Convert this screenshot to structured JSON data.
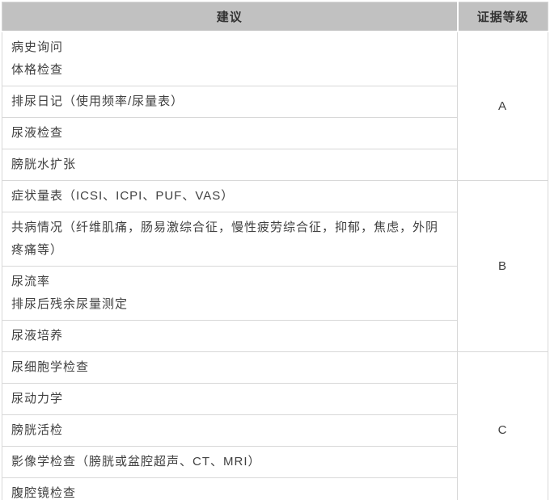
{
  "colors": {
    "header_bg": "#c1c1c1",
    "border": "#d8d8d8",
    "text": "#404040",
    "header_text": "#333333",
    "background": "#ffffff"
  },
  "table": {
    "columns": {
      "recommendation": "建议",
      "evidence": "证据等级"
    },
    "rows": [
      {
        "lines": [
          "病史询问",
          "体格检查"
        ]
      },
      {
        "lines": [
          "排尿日记（使用频率/尿量表）"
        ]
      },
      {
        "lines": [
          "尿液检查"
        ]
      },
      {
        "lines": [
          "膀胱水扩张"
        ]
      },
      {
        "lines": [
          "症状量表（ICSI、ICPI、PUF、VAS）"
        ]
      },
      {
        "lines": [
          "共病情况（纤维肌痛，肠易激综合征，慢性疲劳综合征，抑郁，焦虑，外阴疼痛等）"
        ]
      },
      {
        "lines": [
          "尿流率",
          "排尿后残余尿量测定"
        ]
      },
      {
        "lines": [
          "尿液培养"
        ]
      },
      {
        "lines": [
          "尿细胞学检查"
        ]
      },
      {
        "lines": [
          "尿动力学"
        ]
      },
      {
        "lines": [
          "膀胱活检"
        ]
      },
      {
        "lines": [
          "影像学检查（膀胱或盆腔超声、CT、MRI）"
        ]
      },
      {
        "lines": [
          "腹腔镜检查"
        ]
      }
    ],
    "evidence_levels": [
      {
        "level": "A",
        "rowspan": "4"
      },
      {
        "level": "B",
        "rowspan": "4"
      },
      {
        "level": "C",
        "rowspan": "5"
      }
    ]
  }
}
